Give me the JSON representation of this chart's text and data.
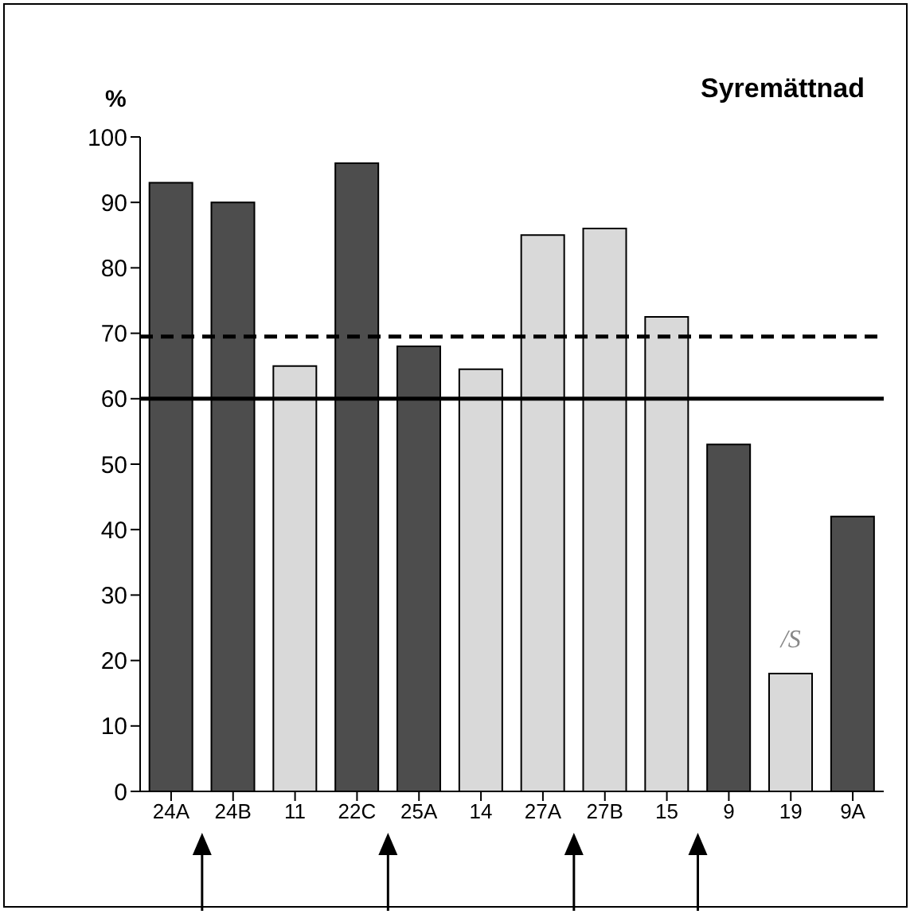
{
  "chart_data": {
    "type": "bar",
    "title": "Syremättnad",
    "ylabel": "%",
    "categories": [
      "24A",
      "24B",
      "11",
      "22C",
      "25A",
      "14",
      "27A",
      "27B",
      "15",
      "9",
      "19",
      "9A"
    ],
    "values": [
      93,
      90,
      65,
      96,
      68,
      64.5,
      85,
      86,
      72.5,
      53,
      18,
      42
    ],
    "colors": [
      "#4d4d4d",
      "#4d4d4d",
      "#d9d9d9",
      "#4d4d4d",
      "#4d4d4d",
      "#d9d9d9",
      "#d9d9d9",
      "#d9d9d9",
      "#d9d9d9",
      "#4d4d4d",
      "#d9d9d9",
      "#4d4d4d"
    ],
    "ylim": [
      0,
      100
    ],
    "yticks": [
      0,
      10,
      20,
      30,
      40,
      50,
      60,
      70,
      80,
      90,
      100
    ],
    "ref_lines": [
      {
        "axis": "y",
        "value": 69.5,
        "line_style": "dashed",
        "color": "#000000"
      },
      {
        "axis": "y",
        "value": 60,
        "line_style": "solid",
        "color": "#000000"
      }
    ],
    "annotations": [
      "/S"
    ],
    "grid": false,
    "legend": false
  }
}
